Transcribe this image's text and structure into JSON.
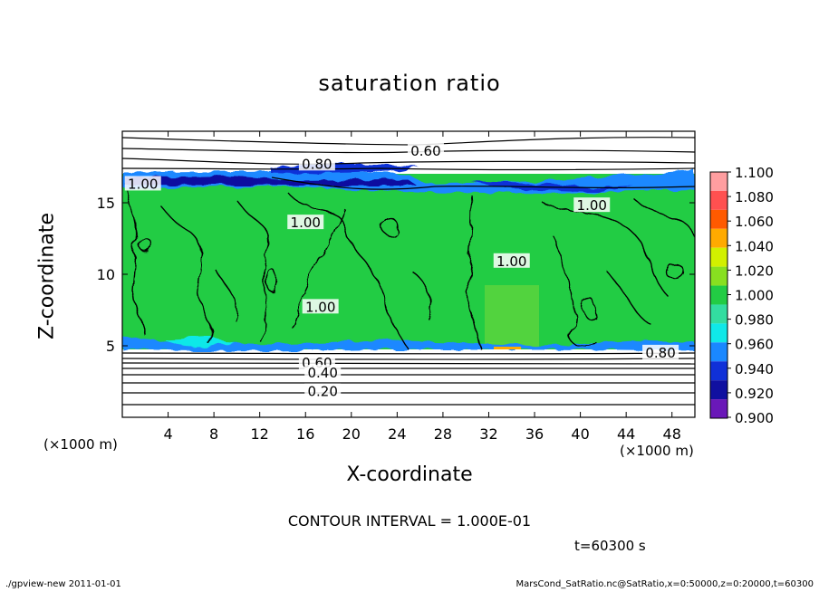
{
  "page": {
    "title": "saturation ratio",
    "contour_interval": "CONTOUR INTERVAL = 1.000E-01",
    "time": "t=60300 s",
    "footer_left": "./gpview-new   2011-01-01",
    "footer_right": "MarsCond_SatRatio.nc@SatRatio,x=0:50000,z=0:20000,t=60300"
  },
  "chart_data": {
    "type": "heatmap",
    "title": "saturation ratio",
    "xlabel": "X-coordinate",
    "ylabel": "Z-coordinate",
    "x_unit": "(×1000 m)",
    "z_unit": "(×1000 m)",
    "xlim": [
      0,
      50
    ],
    "ylim": [
      0,
      20
    ],
    "x_ticks": [
      4,
      8,
      12,
      16,
      20,
      24,
      28,
      32,
      36,
      40,
      44,
      48
    ],
    "y_ticks": [
      5,
      10,
      15
    ],
    "colorbar": {
      "levels": [
        "1.100",
        "1.080",
        "1.060",
        "1.040",
        "1.020",
        "1.000",
        "0.980",
        "0.960",
        "0.940",
        "0.920",
        "0.900"
      ],
      "colors": [
        "#ff9ea0",
        "#ff5050",
        "#ff5a00",
        "#ffaa00",
        "#d2f000",
        "#88e020",
        "#22cc44",
        "#33dda0",
        "#10e8e8",
        "#1a88ff",
        "#1030d8",
        "#1010a0",
        "#6a18b8"
      ]
    },
    "contour_labels": [
      {
        "text": "0.60",
        "x": 26.5,
        "z": 18.6
      },
      {
        "text": "0.80",
        "x": 17.0,
        "z": 17.7
      },
      {
        "text": "1.00",
        "x": 1.8,
        "z": 16.3
      },
      {
        "text": "1.00",
        "x": 16.0,
        "z": 13.6
      },
      {
        "text": "1.00",
        "x": 34.0,
        "z": 10.9
      },
      {
        "text": "1.00",
        "x": 41.0,
        "z": 14.8
      },
      {
        "text": "1.00",
        "x": 17.3,
        "z": 7.7
      },
      {
        "text": "0.60",
        "x": 17.0,
        "z": 3.8
      },
      {
        "text": "0.80",
        "x": 47.0,
        "z": 4.5
      },
      {
        "text": "0.40",
        "x": 17.5,
        "z": 3.1
      },
      {
        "text": "0.20",
        "x": 17.5,
        "z": 1.8
      }
    ],
    "cloud_layer_z": [
      5,
      17
    ],
    "contour_interval": 0.1,
    "time_s": 60300
  }
}
